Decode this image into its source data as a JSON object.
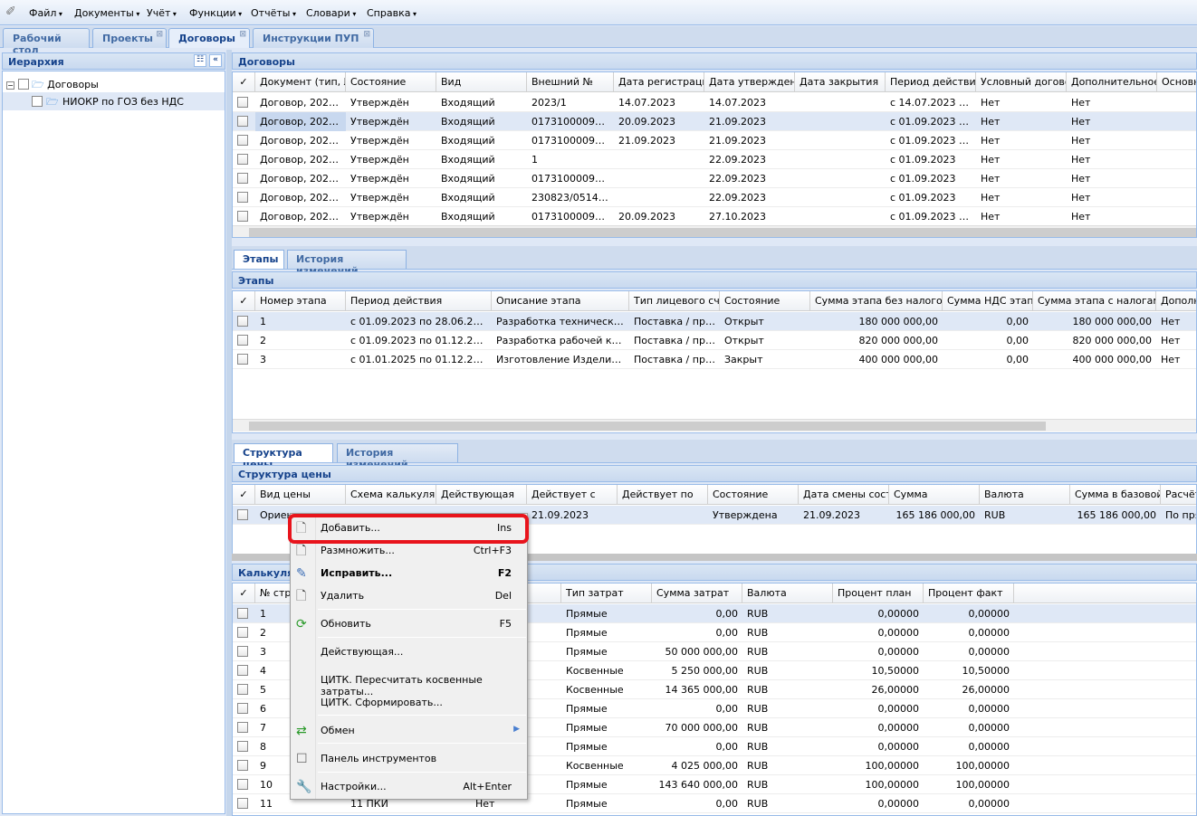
{
  "menu": [
    "Файл",
    "Документы",
    "Учёт",
    "Функции",
    "Отчёты",
    "Словари",
    "Справка"
  ],
  "tabs": [
    {
      "label": "Рабочий стол"
    },
    {
      "label": "Проекты"
    },
    {
      "label": "Договоры"
    },
    {
      "label": "Инструкции ПУП"
    }
  ],
  "hierarchy": {
    "title": "Иерархия",
    "root": "Договоры",
    "child": "НИОКР по ГОЗ без НДС"
  },
  "contracts": {
    "title": "Договоры",
    "columns": [
      "Документ (тип, №",
      "Состояние",
      "Вид",
      "Внешний №",
      "Дата регистрации.",
      "Дата утверждения",
      "Дата закрытия",
      "Период действия..",
      "Условный договор",
      "Дополнительное с",
      "Основно"
    ],
    "rows": [
      [
        "Договор, 2023/...",
        "Утверждён",
        "Входящий",
        "2023/1",
        "14.07.2023",
        "14.07.2023",
        "",
        "с 14.07.2023 по...",
        "Нет",
        "Нет",
        ""
      ],
      [
        "Договор, 2023/...",
        "Утверждён",
        "Входящий",
        "017310000922...",
        "20.09.2023",
        "21.09.2023",
        "",
        "с 01.09.2023 п...",
        "Нет",
        "Нет",
        ""
      ],
      [
        "Договор, 2023/...",
        "Утверждён",
        "Входящий",
        "017310000922...",
        "21.09.2023",
        "21.09.2023",
        "",
        "с 01.09.2023 п...",
        "Нет",
        "Нет",
        ""
      ],
      [
        "Договор, 2023/...",
        "Утверждён",
        "Входящий",
        "1",
        "",
        "22.09.2023",
        "",
        "с 01.09.2023",
        "Нет",
        "Нет",
        ""
      ],
      [
        "Договор, 2023/...",
        "Утверждён",
        "Входящий",
        "017310000922...",
        "",
        "22.09.2023",
        "",
        "с 01.09.2023",
        "Нет",
        "Нет",
        ""
      ],
      [
        "Договор, 2023/...",
        "Утверждён",
        "Входящий",
        "230823/0514/...",
        "",
        "22.09.2023",
        "",
        "с 01.09.2023",
        "Нет",
        "Нет",
        ""
      ],
      [
        "Договор, 2023/...",
        "Утверждён",
        "Входящий",
        "017310000922...",
        "20.09.2023",
        "27.10.2023",
        "",
        "с 01.09.2023 п...",
        "Нет",
        "Нет",
        ""
      ]
    ]
  },
  "stage_tabs": [
    "Этапы",
    "История изменений"
  ],
  "stages": {
    "title": "Этапы",
    "columns": [
      "Номер этапа",
      "Период действия",
      "Описание этапа",
      "Тип лицевого счёт",
      "Состояние",
      "Сумма этапа без налогов",
      "Сумма НДС этапа",
      "Сумма этапа с налогами",
      "Дополни"
    ],
    "rows": [
      [
        "1",
        "с 01.09.2023 по 28.06.2024",
        "Разработка технического...",
        "Поставка / про...",
        "Открыт",
        "180 000 000,00",
        "0,00",
        "180 000 000,00",
        "Нет"
      ],
      [
        "2",
        "с 01.09.2023 по 01.12.2024",
        "Разработка рабочей конс...",
        "Поставка / про...",
        "Открыт",
        "820 000 000,00",
        "0,00",
        "820 000 000,00",
        "Нет"
      ],
      [
        "3",
        "с 01.01.2025 по 01.12.2025",
        "Изготовление Изделия и ...",
        "Поставка / про...",
        "Закрыт",
        "400 000 000,00",
        "0,00",
        "400 000 000,00",
        "Нет"
      ]
    ]
  },
  "price_tabs": [
    "Структура цены",
    "История изменений"
  ],
  "price": {
    "title": "Структура цены",
    "columns": [
      "Вид цены",
      "Схема калькуляци",
      "Действующая",
      "Действует с",
      "Действует по",
      "Состояние",
      "Дата смены состоя",
      "Сумма",
      "Валюта",
      "Сумма в базовой в",
      "Расчёт"
    ],
    "rows": [
      [
        "Ориентировочная",
        "",
        "",
        "21.09.2023",
        "",
        "Утверждена",
        "21.09.2023",
        "165 186 000,00",
        "RUB",
        "165 186 000,00",
        "По пря"
      ]
    ]
  },
  "calc": {
    "title": "Калькуляция",
    "columns": [
      "№ стр",
      "",
      "",
      "Тип затрат",
      "Сумма затрат",
      "Валюта",
      "Процент план",
      "Процент факт"
    ],
    "rows": [
      [
        "1",
        "",
        "",
        "Прямые",
        "0,00",
        "RUB",
        "0,00000",
        "0,00000"
      ],
      [
        "2",
        "",
        "",
        "Прямые",
        "0,00",
        "RUB",
        "0,00000",
        "0,00000"
      ],
      [
        "3",
        "",
        "",
        "Прямые",
        "50 000 000,00",
        "RUB",
        "0,00000",
        "0,00000"
      ],
      [
        "4",
        "",
        "",
        "Косвенные",
        "5 250 000,00",
        "RUB",
        "10,50000",
        "10,50000"
      ],
      [
        "5",
        "",
        "",
        "Косвенные",
        "14 365 000,00",
        "RUB",
        "26,00000",
        "26,00000"
      ],
      [
        "6",
        "",
        "",
        "Прямые",
        "0,00",
        "RUB",
        "0,00000",
        "0,00000"
      ],
      [
        "7",
        "",
        "",
        "Прямые",
        "70 000 000,00",
        "RUB",
        "0,00000",
        "0,00000"
      ],
      [
        "8",
        "",
        "",
        "Прямые",
        "0,00",
        "RUB",
        "0,00000",
        "0,00000"
      ],
      [
        "9",
        "",
        "",
        "Косвенные",
        "4 025 000,00",
        "RUB",
        "100,00000",
        "100,00000"
      ],
      [
        "10",
        "",
        "",
        "Прямые",
        "143 640 000,00",
        "RUB",
        "100,00000",
        "100,00000"
      ],
      [
        "11",
        "11 ПКИ",
        "Нет",
        "Прямые",
        "0,00",
        "RUB",
        "0,00000",
        "0,00000"
      ]
    ]
  },
  "context_menu": [
    {
      "label": "Добавить...",
      "shortcut": "Ins",
      "icon": "document-icon"
    },
    {
      "label": "Размножить...",
      "shortcut": "Ctrl+F3",
      "icon": "document-add-icon"
    },
    {
      "label": "Исправить...",
      "shortcut": "F2",
      "icon": "edit-icon",
      "bold": true
    },
    {
      "label": "Удалить",
      "shortcut": "Del",
      "icon": "document-delete-icon"
    },
    {
      "label": "Обновить",
      "shortcut": "F5",
      "icon": "refresh-icon"
    },
    {
      "label": "Действующая...",
      "shortcut": ""
    },
    {
      "label": "ЦИТК. Пересчитать косвенные затраты...",
      "shortcut": ""
    },
    {
      "label": "ЦИТК. Сформировать...",
      "shortcut": ""
    },
    {
      "label": "Обмен",
      "shortcut": "",
      "icon": "exchange-icon",
      "submenu": true
    },
    {
      "label": "Панель инструментов",
      "shortcut": "",
      "icon": "checkbox-icon"
    },
    {
      "label": "Настройки...",
      "shortcut": "Alt+Enter",
      "icon": "wrench-icon"
    }
  ],
  "colors": {
    "highlight": "#e8141c",
    "header": "#15428b",
    "selected_row": "#dfe8f6"
  }
}
